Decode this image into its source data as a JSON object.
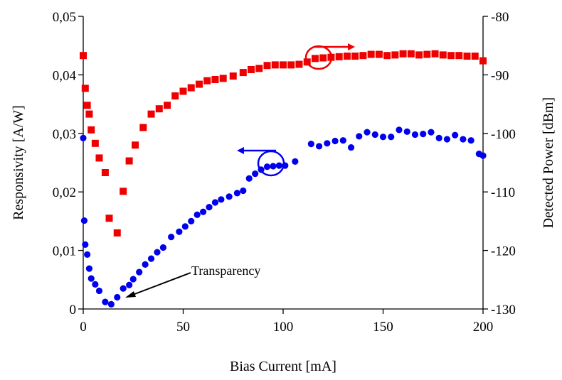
{
  "chart_data": {
    "type": "scatter",
    "title": "",
    "xlabel": "Bias Current [mA]",
    "ylabel": "Responsivity [A/W]",
    "y2label": "Detected Power [dBm]",
    "xlim": [
      0,
      200
    ],
    "ylim": [
      0,
      0.05
    ],
    "y2lim": [
      -130,
      -80
    ],
    "x_ticks": [
      0,
      50,
      100,
      150,
      200
    ],
    "x_tick_labels": [
      "0",
      "50",
      "100",
      "150",
      "200"
    ],
    "y_ticks": [
      0,
      0.01,
      0.02,
      0.03,
      0.04,
      0.05
    ],
    "y_tick_labels": [
      "0",
      "0,01",
      "0,02",
      "0,03",
      "0,04",
      "0,05"
    ],
    "y2_ticks": [
      -130,
      -120,
      -110,
      -100,
      -90,
      -80
    ],
    "y2_tick_labels": [
      "-130",
      "-120",
      "-110",
      "-100",
      "-90",
      "-80"
    ],
    "grid": false,
    "legend": "none",
    "annotations": [
      {
        "text": "Transparency",
        "x": 20,
        "y": 0.002,
        "axis": "left"
      }
    ],
    "series": [
      {
        "axis": "left",
        "marker": "circle",
        "color": "#0000ee",
        "x": [
          0,
          0.5,
          1,
          2,
          3,
          4,
          6,
          8,
          11,
          14,
          17,
          20,
          23,
          25,
          28,
          31,
          34,
          37,
          40,
          44,
          48,
          51,
          54,
          57,
          60,
          63,
          66,
          69,
          73,
          77,
          80,
          83,
          86,
          89,
          92,
          95,
          98,
          101,
          106,
          114,
          118,
          122,
          126,
          130,
          134,
          138,
          142,
          146,
          150,
          154,
          158,
          162,
          166,
          170,
          174,
          178,
          182,
          186,
          190,
          194,
          198,
          200
        ],
        "y": [
          0.0292,
          0.0151,
          0.011,
          0.0093,
          0.0069,
          0.0052,
          0.0042,
          0.0031,
          0.0012,
          0.0008,
          0.002,
          0.0035,
          0.0041,
          0.0051,
          0.0063,
          0.0076,
          0.0086,
          0.0097,
          0.0105,
          0.0123,
          0.0132,
          0.0141,
          0.015,
          0.0161,
          0.0166,
          0.0174,
          0.0182,
          0.0187,
          0.0192,
          0.0198,
          0.0202,
          0.0223,
          0.0231,
          0.0238,
          0.0243,
          0.0244,
          0.0245,
          0.0245,
          0.0252,
          0.0282,
          0.0278,
          0.0283,
          0.0287,
          0.0288,
          0.0276,
          0.0295,
          0.0302,
          0.0298,
          0.0294,
          0.0294,
          0.0306,
          0.0303,
          0.0298,
          0.0299,
          0.0302,
          0.0292,
          0.029,
          0.0297,
          0.029,
          0.0288,
          0.0265,
          0.0262
        ]
      },
      {
        "axis": "right",
        "marker": "square",
        "color": "#ee0000",
        "x": [
          0,
          1,
          2,
          3,
          4,
          6,
          8,
          11,
          13,
          17,
          20,
          23,
          26,
          30,
          34,
          38,
          42,
          46,
          50,
          54,
          58,
          62,
          66,
          70,
          75,
          80,
          84,
          88,
          92,
          96,
          100,
          104,
          108,
          112,
          116,
          120,
          124,
          128,
          132,
          136,
          140,
          144,
          148,
          152,
          156,
          160,
          164,
          168,
          172,
          176,
          180,
          184,
          188,
          192,
          196,
          200
        ],
        "y": [
          -86.7,
          -92.3,
          -95.2,
          -96.7,
          -99.4,
          -101.7,
          -104.2,
          -106.7,
          -114.5,
          -117,
          -109.9,
          -104.7,
          -102,
          -99,
          -96.7,
          -95.8,
          -95.2,
          -93.6,
          -92.8,
          -92.2,
          -91.6,
          -91,
          -90.8,
          -90.6,
          -90.2,
          -89.6,
          -89.1,
          -88.9,
          -88.4,
          -88.3,
          -88.3,
          -88.3,
          -88.2,
          -87.8,
          -87.2,
          -87.1,
          -87,
          -86.9,
          -86.8,
          -86.8,
          -86.7,
          -86.5,
          -86.5,
          -86.7,
          -86.6,
          -86.4,
          -86.4,
          -86.6,
          -86.5,
          -86.4,
          -86.6,
          -86.7,
          -86.7,
          -86.8,
          -86.8,
          -87.6
        ]
      }
    ]
  },
  "colors": {
    "blue_series": "#0000ee",
    "red_series": "#ee0000",
    "axis": "#000000"
  }
}
